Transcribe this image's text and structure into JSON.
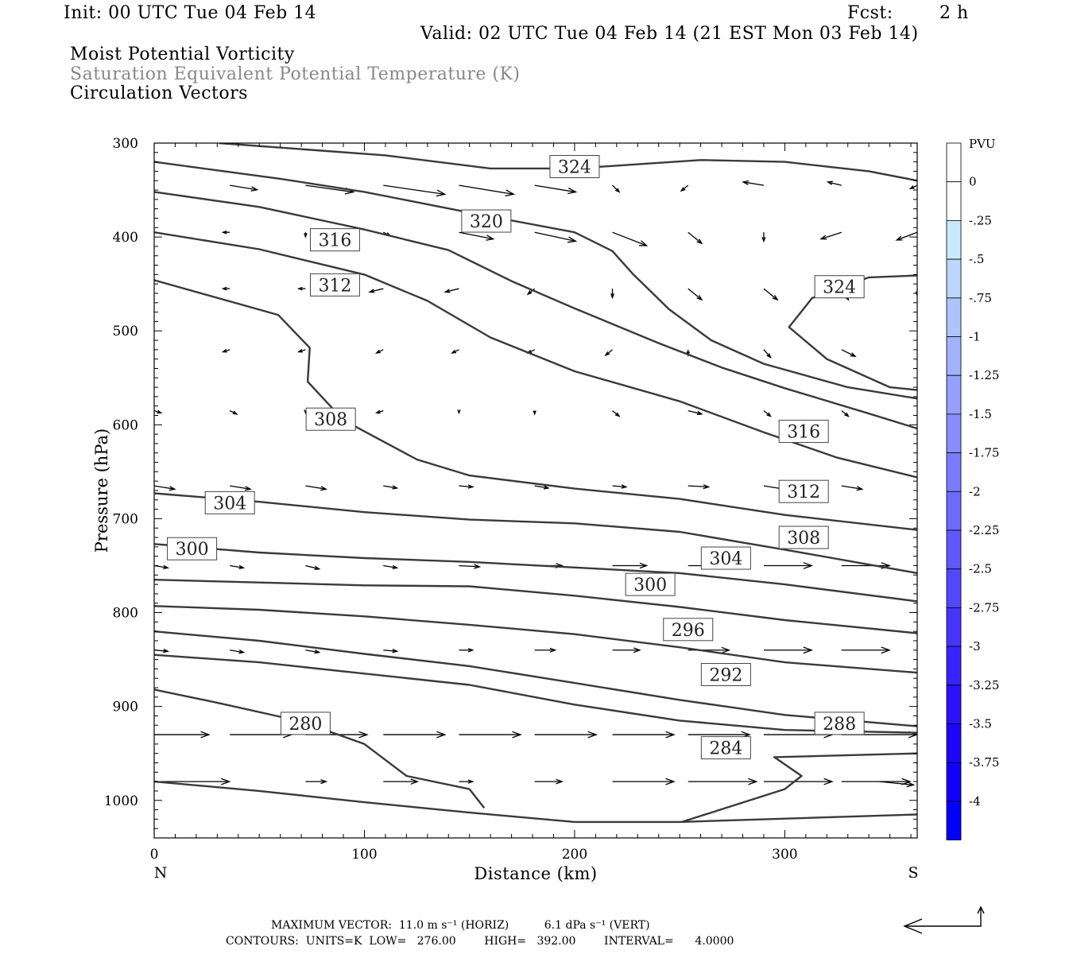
{
  "header": {
    "init": "Init: 00 UTC Tue 04 Feb 14",
    "fcst_label": "Fcst:",
    "fcst_value": "2 h",
    "valid": "Valid: 02 UTC Tue 04 Feb 14 (21 EST Mon 03 Feb 14)",
    "field1": "Moist Potential Vorticity",
    "field2": "Saturation Equivalent Potential Temperature (K)",
    "field3": "Circulation Vectors"
  },
  "chart_data": {
    "type": "line",
    "title": "Moist Potential Vorticity",
    "xlabel": "Distance (km)",
    "ylabel": "Pressure (hPa)",
    "xlim": [
      0,
      363
    ],
    "ylim": [
      1040,
      300
    ],
    "x_ticks": [
      "0",
      "100",
      "200",
      "300"
    ],
    "y_ticks": [
      "300",
      "400",
      "500",
      "600",
      "700",
      "800",
      "900",
      "1000"
    ],
    "x_end_labels": {
      "left": "N",
      "right": "S"
    },
    "contour_units": "K",
    "contour_interval": 4,
    "contour_labels": [
      {
        "text": "324",
        "x": 200,
        "p": 325
      },
      {
        "text": "320",
        "x": 158,
        "p": 383
      },
      {
        "text": "316",
        "x": 86,
        "p": 403
      },
      {
        "text": "312",
        "x": 86,
        "p": 451
      },
      {
        "text": "324",
        "x": 326,
        "p": 453
      },
      {
        "text": "308",
        "x": 84,
        "p": 594
      },
      {
        "text": "316",
        "x": 309,
        "p": 607
      },
      {
        "text": "312",
        "x": 309,
        "p": 671
      },
      {
        "text": "304",
        "x": 36,
        "p": 683
      },
      {
        "text": "308",
        "x": 309,
        "p": 720
      },
      {
        "text": "300",
        "x": 18,
        "p": 732
      },
      {
        "text": "304",
        "x": 272,
        "p": 742
      },
      {
        "text": "300",
        "x": 236,
        "p": 770
      },
      {
        "text": "296",
        "x": 254,
        "p": 818
      },
      {
        "text": "292",
        "x": 272,
        "p": 866
      },
      {
        "text": "288",
        "x": 326,
        "p": 918
      },
      {
        "text": "280",
        "x": 72,
        "p": 918
      },
      {
        "text": "284",
        "x": 272,
        "p": 944
      }
    ],
    "contours": [
      {
        "level": 324,
        "points": [
          [
            31,
            300
          ],
          [
            110,
            313
          ],
          [
            160,
            327
          ],
          [
            200,
            327
          ],
          [
            260,
            318
          ],
          [
            300,
            320
          ],
          [
            340,
            330
          ],
          [
            363,
            340
          ]
        ]
      },
      {
        "level": 320,
        "points": [
          [
            0,
            320
          ],
          [
            60,
            338
          ],
          [
            100,
            352
          ],
          [
            150,
            374
          ],
          [
            200,
            395
          ],
          [
            218,
            415
          ],
          [
            228,
            440
          ],
          [
            245,
            477
          ],
          [
            265,
            510
          ],
          [
            290,
            535
          ],
          [
            330,
            560
          ],
          [
            363,
            572
          ]
        ]
      },
      {
        "level": 316,
        "points": [
          [
            0,
            352
          ],
          [
            50,
            368
          ],
          [
            100,
            392
          ],
          [
            140,
            414
          ],
          [
            170,
            447
          ],
          [
            200,
            476
          ],
          [
            240,
            513
          ],
          [
            270,
            539
          ],
          [
            300,
            561
          ],
          [
            340,
            588
          ],
          [
            363,
            604
          ]
        ]
      },
      {
        "level": 312,
        "points": [
          [
            0,
            395
          ],
          [
            50,
            413
          ],
          [
            100,
            440
          ],
          [
            130,
            468
          ],
          [
            160,
            507
          ],
          [
            200,
            543
          ],
          [
            250,
            575
          ],
          [
            290,
            608
          ],
          [
            325,
            635
          ],
          [
            363,
            656
          ]
        ]
      },
      {
        "level": 308,
        "points": [
          [
            0,
            446
          ],
          [
            59,
            483
          ],
          [
            74,
            518
          ],
          [
            73,
            554
          ],
          [
            90,
            595
          ],
          [
            125,
            637
          ],
          [
            150,
            654
          ],
          [
            200,
            668
          ],
          [
            250,
            679
          ],
          [
            300,
            696
          ],
          [
            363,
            712
          ]
        ]
      },
      {
        "level": 304,
        "points": [
          [
            0,
            673
          ],
          [
            50,
            682
          ],
          [
            100,
            693
          ],
          [
            150,
            701
          ],
          [
            200,
            705
          ],
          [
            250,
            714
          ],
          [
            300,
            733
          ],
          [
            363,
            758
          ]
        ]
      },
      {
        "level": 300,
        "points": [
          [
            0,
            727
          ],
          [
            50,
            736
          ],
          [
            100,
            742
          ],
          [
            150,
            746
          ],
          [
            200,
            752
          ],
          [
            250,
            758
          ],
          [
            300,
            770
          ],
          [
            363,
            788
          ]
        ]
      },
      {
        "level": 296,
        "points": [
          [
            0,
            765
          ],
          [
            50,
            768
          ],
          [
            100,
            771
          ],
          [
            150,
            772
          ],
          [
            200,
            782
          ],
          [
            250,
            794
          ],
          [
            300,
            808
          ],
          [
            363,
            822
          ]
        ]
      },
      {
        "level": 292,
        "points": [
          [
            0,
            793
          ],
          [
            50,
            797
          ],
          [
            100,
            804
          ],
          [
            150,
            813
          ],
          [
            200,
            823
          ],
          [
            250,
            837
          ],
          [
            300,
            853
          ],
          [
            363,
            864
          ]
        ]
      },
      {
        "level": 288,
        "points": [
          [
            0,
            820
          ],
          [
            50,
            830
          ],
          [
            100,
            844
          ],
          [
            150,
            857
          ],
          [
            200,
            875
          ],
          [
            250,
            893
          ],
          [
            300,
            909
          ],
          [
            363,
            921
          ]
        ]
      },
      {
        "level": 284,
        "points": [
          [
            0,
            845
          ],
          [
            50,
            853
          ],
          [
            100,
            865
          ],
          [
            150,
            877
          ],
          [
            200,
            898
          ],
          [
            250,
            915
          ],
          [
            300,
            925
          ],
          [
            363,
            928
          ]
        ]
      },
      {
        "level": 280,
        "points": [
          [
            0,
            882
          ],
          [
            30,
            896
          ],
          [
            70,
            916
          ],
          [
            100,
            940
          ],
          [
            120,
            974
          ],
          [
            150,
            988
          ],
          [
            157,
            1008
          ]
        ]
      },
      {
        "level": 276,
        "points": [
          [
            0,
            980
          ],
          [
            50,
            990
          ],
          [
            100,
            1002
          ],
          [
            150,
            1013
          ],
          [
            200,
            1023
          ],
          [
            250,
            1023
          ],
          [
            363,
            1015
          ]
        ]
      },
      {
        "level": 280,
        "points": [
          [
            251,
            1023
          ],
          [
            300,
            988
          ],
          [
            308,
            974
          ],
          [
            295,
            954
          ],
          [
            363,
            950
          ]
        ]
      },
      {
        "level": 324,
        "points": [
          [
            363,
            441
          ],
          [
            340,
            443
          ],
          [
            313,
            465
          ],
          [
            302,
            496
          ],
          [
            320,
            530
          ],
          [
            350,
            560
          ],
          [
            363,
            563
          ]
        ]
      }
    ],
    "pv_colorbar": {
      "label": "PVU",
      "levels": [
        "0",
        "-.25",
        "-.5",
        "-.75",
        "-1",
        "-1.25",
        "-1.5",
        "-1.75",
        "-2",
        "-2.25",
        "-2.5",
        "-2.75",
        "-3",
        "-3.25",
        "-3.5",
        "-3.75",
        "-4"
      ],
      "colors": [
        "#ffffff",
        "#ffffff",
        "#c8e8ff",
        "#bbd6ff",
        "#aec4ff",
        "#a1b2ff",
        "#94a0ff",
        "#878eff",
        "#7a7cff",
        "#6d6aff",
        "#6058ff",
        "#5346ff",
        "#4634ff",
        "#3922ff",
        "#2c10ff",
        "#1f05ff",
        "#1000ff",
        "#0000ff"
      ]
    },
    "vectors": [
      {
        "x": 36,
        "p": 345,
        "u": 4,
        "w": 0.4
      },
      {
        "x": 72,
        "p": 345,
        "u": 7,
        "w": 0.6
      },
      {
        "x": 109,
        "p": 345,
        "u": 9,
        "w": 0.8
      },
      {
        "x": 145,
        "p": 345,
        "u": 8,
        "w": 0.8
      },
      {
        "x": 181,
        "p": 345,
        "u": 6,
        "w": 0.6
      },
      {
        "x": 218,
        "p": 345,
        "u": 1,
        "w": 0.6
      },
      {
        "x": 254,
        "p": 345,
        "u": -1,
        "w": 0.5
      },
      {
        "x": 290,
        "p": 345,
        "u": -3,
        "w": -0.3
      },
      {
        "x": 327,
        "p": 345,
        "u": -2,
        "w": -0.3
      },
      {
        "x": 363,
        "p": 345,
        "u": -1,
        "w": 0.3
      },
      {
        "x": 36,
        "p": 395,
        "u": -1,
        "w": 0
      },
      {
        "x": 72,
        "p": 395,
        "u": 0,
        "w": 0.4
      },
      {
        "x": 109,
        "p": 395,
        "u": 1,
        "w": 0.3
      },
      {
        "x": 145,
        "p": 395,
        "u": 5,
        "w": 0.6
      },
      {
        "x": 181,
        "p": 395,
        "u": 6,
        "w": 0.8
      },
      {
        "x": 218,
        "p": 395,
        "u": 5,
        "w": 1.2
      },
      {
        "x": 254,
        "p": 395,
        "u": 2,
        "w": 1.0
      },
      {
        "x": 290,
        "p": 395,
        "u": 0,
        "w": 0.8
      },
      {
        "x": 327,
        "p": 395,
        "u": -3,
        "w": 0.6
      },
      {
        "x": 363,
        "p": 395,
        "u": -3,
        "w": 0.7
      },
      {
        "x": 36,
        "p": 455,
        "u": -1,
        "w": 0
      },
      {
        "x": 72,
        "p": 455,
        "u": -1,
        "w": 0
      },
      {
        "x": 109,
        "p": 455,
        "u": -2,
        "w": 0.3
      },
      {
        "x": 145,
        "p": 455,
        "u": -2,
        "w": 0.3
      },
      {
        "x": 181,
        "p": 455,
        "u": -1,
        "w": 0.5
      },
      {
        "x": 218,
        "p": 455,
        "u": 0,
        "w": 0.8
      },
      {
        "x": 254,
        "p": 455,
        "u": 2,
        "w": 1.0
      },
      {
        "x": 290,
        "p": 455,
        "u": 2,
        "w": 1.0
      },
      {
        "x": 327,
        "p": 455,
        "u": 1,
        "w": 1.0
      },
      {
        "x": 363,
        "p": 455,
        "u": 0,
        "w": 0.6
      },
      {
        "x": 36,
        "p": 520,
        "u": -1,
        "w": 0.2
      },
      {
        "x": 72,
        "p": 520,
        "u": -1,
        "w": 0.2
      },
      {
        "x": 109,
        "p": 520,
        "u": -1,
        "w": 0.3
      },
      {
        "x": 145,
        "p": 520,
        "u": -1,
        "w": 0.3
      },
      {
        "x": 181,
        "p": 520,
        "u": -1,
        "w": 0.3
      },
      {
        "x": 218,
        "p": 520,
        "u": -1,
        "w": 0.5
      },
      {
        "x": 254,
        "p": 520,
        "u": 0,
        "w": 0.5
      },
      {
        "x": 290,
        "p": 520,
        "u": 1,
        "w": 0.7
      },
      {
        "x": 327,
        "p": 520,
        "u": 2,
        "w": 0.6
      },
      {
        "x": 0,
        "p": 585,
        "u": 1,
        "w": 0.2
      },
      {
        "x": 36,
        "p": 585,
        "u": 1,
        "w": 0.3
      },
      {
        "x": 72,
        "p": 585,
        "u": 0,
        "w": 0.2
      },
      {
        "x": 109,
        "p": 585,
        "u": -1,
        "w": 0.2
      },
      {
        "x": 145,
        "p": 585,
        "u": 0,
        "w": 0.2
      },
      {
        "x": 181,
        "p": 585,
        "u": 0,
        "w": 0.3
      },
      {
        "x": 218,
        "p": 585,
        "u": 1,
        "w": 0.5
      },
      {
        "x": 254,
        "p": 585,
        "u": 2,
        "w": 0.3
      },
      {
        "x": 290,
        "p": 585,
        "u": 1,
        "w": 0.5
      },
      {
        "x": 327,
        "p": 585,
        "u": 1,
        "w": 0.5
      },
      {
        "x": 0,
        "p": 665,
        "u": 3,
        "w": 0.3
      },
      {
        "x": 36,
        "p": 665,
        "u": 3,
        "w": 0.3
      },
      {
        "x": 72,
        "p": 665,
        "u": 3,
        "w": 0.3
      },
      {
        "x": 109,
        "p": 665,
        "u": 2,
        "w": 0.2
      },
      {
        "x": 145,
        "p": 665,
        "u": 2,
        "w": 0.1
      },
      {
        "x": 181,
        "p": 665,
        "u": 2,
        "w": 0.2
      },
      {
        "x": 218,
        "p": 665,
        "u": 2,
        "w": 0.1
      },
      {
        "x": 254,
        "p": 665,
        "u": 3,
        "w": 0.1
      },
      {
        "x": 290,
        "p": 665,
        "u": 3,
        "w": 0.3
      },
      {
        "x": 327,
        "p": 665,
        "u": 3,
        "w": 0.3
      },
      {
        "x": 0,
        "p": 750,
        "u": 2,
        "w": 0.2
      },
      {
        "x": 36,
        "p": 750,
        "u": 2,
        "w": 0.2
      },
      {
        "x": 72,
        "p": 750,
        "u": 2,
        "w": 0.3
      },
      {
        "x": 109,
        "p": 750,
        "u": 2,
        "w": 0.2
      },
      {
        "x": 145,
        "p": 750,
        "u": 3,
        "w": 0.1
      },
      {
        "x": 181,
        "p": 750,
        "u": 4,
        "w": 0
      },
      {
        "x": 218,
        "p": 750,
        "u": 5,
        "w": 0
      },
      {
        "x": 254,
        "p": 750,
        "u": 6,
        "w": 0
      },
      {
        "x": 290,
        "p": 750,
        "u": 7,
        "w": 0
      },
      {
        "x": 327,
        "p": 750,
        "u": 7,
        "w": 0
      },
      {
        "x": 0,
        "p": 840,
        "u": 2,
        "w": 0.1
      },
      {
        "x": 36,
        "p": 840,
        "u": 2,
        "w": 0.2
      },
      {
        "x": 72,
        "p": 840,
        "u": 2,
        "w": 0.2
      },
      {
        "x": 109,
        "p": 840,
        "u": 2,
        "w": 0.1
      },
      {
        "x": 145,
        "p": 840,
        "u": 2,
        "w": 0
      },
      {
        "x": 181,
        "p": 840,
        "u": 3,
        "w": 0
      },
      {
        "x": 218,
        "p": 840,
        "u": 4,
        "w": 0
      },
      {
        "x": 254,
        "p": 840,
        "u": 6,
        "w": 0
      },
      {
        "x": 290,
        "p": 840,
        "u": 7,
        "w": 0
      },
      {
        "x": 327,
        "p": 840,
        "u": 7,
        "w": 0
      },
      {
        "x": 0,
        "p": 930,
        "u": 8,
        "w": 0
      },
      {
        "x": 36,
        "p": 930,
        "u": 9,
        "w": 0
      },
      {
        "x": 72,
        "p": 930,
        "u": 9,
        "w": 0
      },
      {
        "x": 109,
        "p": 930,
        "u": 9,
        "w": 0
      },
      {
        "x": 145,
        "p": 930,
        "u": 9,
        "w": 0
      },
      {
        "x": 181,
        "p": 930,
        "u": 9,
        "w": 0
      },
      {
        "x": 218,
        "p": 930,
        "u": 9,
        "w": 0
      },
      {
        "x": 254,
        "p": 930,
        "u": 9,
        "w": 0
      },
      {
        "x": 290,
        "p": 930,
        "u": 10,
        "w": 0
      },
      {
        "x": 327,
        "p": 930,
        "u": 11,
        "w": 0
      },
      {
        "x": 0,
        "p": 980,
        "u": 11,
        "w": 0
      },
      {
        "x": 72,
        "p": 980,
        "u": 3,
        "w": 0
      },
      {
        "x": 109,
        "p": 980,
        "u": 5,
        "w": 0
      },
      {
        "x": 145,
        "p": 980,
        "u": 2,
        "w": 0
      },
      {
        "x": 181,
        "p": 980,
        "u": 4,
        "w": 0
      },
      {
        "x": 218,
        "p": 980,
        "u": 9,
        "w": 0
      },
      {
        "x": 254,
        "p": 980,
        "u": 10,
        "w": 0
      },
      {
        "x": 290,
        "p": 980,
        "u": 10,
        "w": 0
      },
      {
        "x": 327,
        "p": 980,
        "u": 10,
        "w": 0
      },
      {
        "x": 345,
        "p": 980,
        "u": 5,
        "w": 0.3
      }
    ]
  },
  "footer": {
    "line1": "MAXIMUM VECTOR:  11.0 m s⁻¹ (HORIZ)          6.1 dPa s⁻¹ (VERT)",
    "line2": "CONTOURS:  UNITS=K  LOW=   276.00        HIGH=   392.00        INTERVAL=      4.0000"
  }
}
